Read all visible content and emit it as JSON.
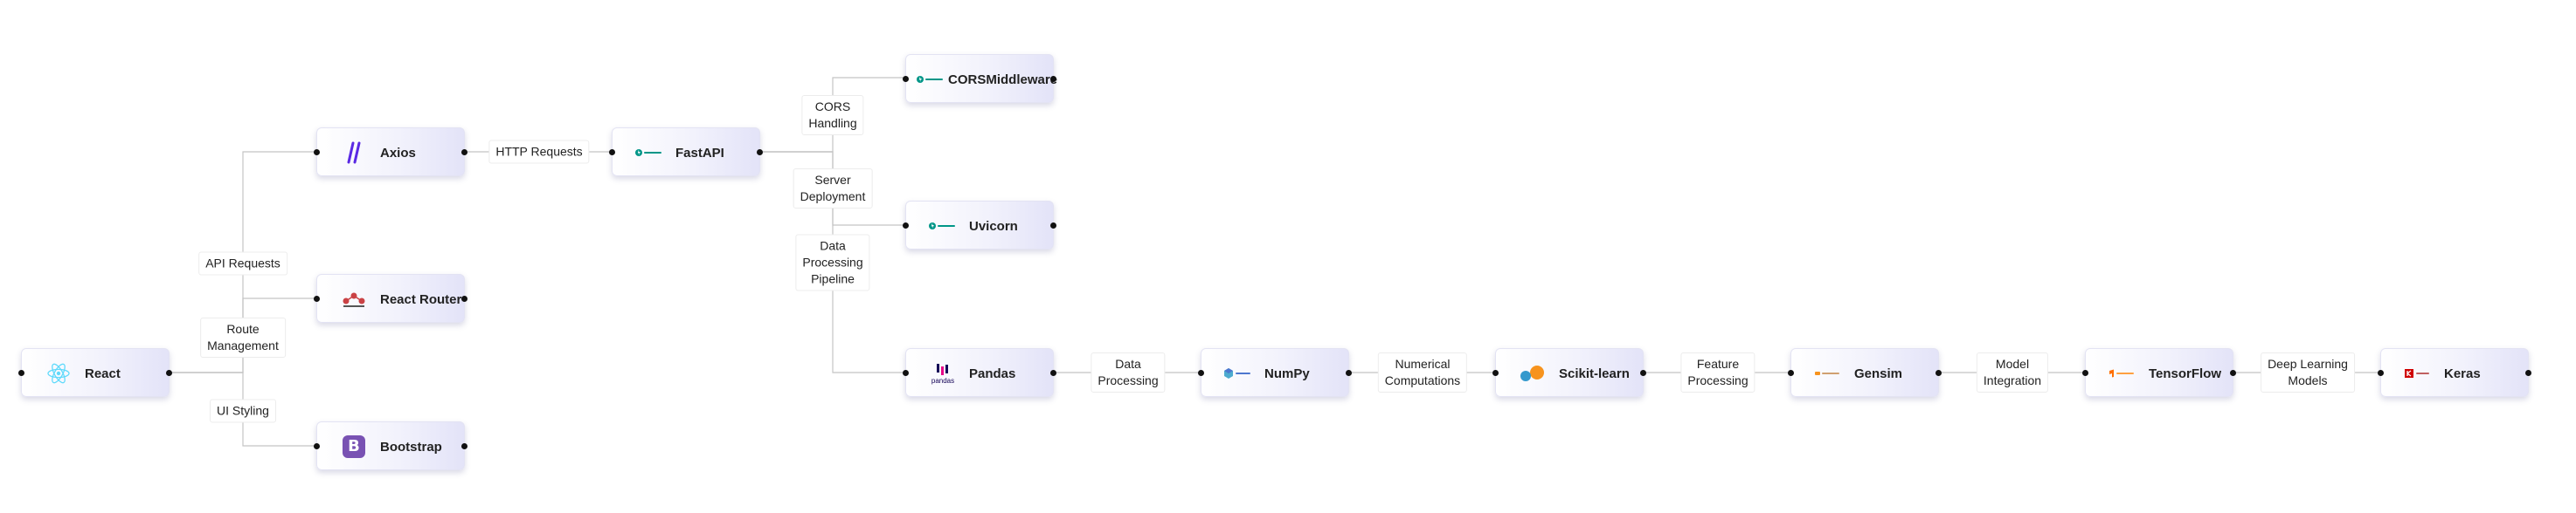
{
  "nodes": {
    "react": "React",
    "axios": "Axios",
    "react_router": "React Router",
    "bootstrap": "Bootstrap",
    "fastapi": "FastAPI",
    "cors": "CORSMiddleware",
    "uvicorn": "Uvicorn",
    "pandas": "Pandas",
    "numpy": "NumPy",
    "sklearn": "Scikit-learn",
    "gensim": "Gensim",
    "tensorflow": "TensorFlow",
    "keras": "Keras"
  },
  "edge_labels": {
    "api_requests": "API Requests",
    "route_management": "Route\nManagement",
    "ui_styling": "UI Styling",
    "http_requests": "HTTP Requests",
    "cors_handling": "CORS\nHandling",
    "server_deployment": "Server\nDeployment",
    "data_pipeline": "Data\nProcessing\nPipeline",
    "data_processing": "Data\nProcessing",
    "numerical": "Numerical\nComputations",
    "feature_processing": "Feature\nProcessing",
    "model_integration": "Model\nIntegration",
    "deep_learning": "Deep Learning\nModels"
  },
  "logo_text": {
    "pandas": "pandas",
    "bootstrap": "B"
  },
  "colors": {
    "edge": "#c4c4c4",
    "react_logo": "#61dafb",
    "axios_logo": "#5a29e4",
    "router_logo": "#ca4245",
    "bootstrap_logo": "#7952b3",
    "fastapi_logo": "#009688",
    "pandas_logo": "#150458",
    "numpy_logo": "#4dabcf",
    "sklearn_orange": "#f7931e",
    "sklearn_blue": "#3499cd",
    "tensorflow_logo": "#ff6f00",
    "keras_logo": "#d00000"
  },
  "icons": {
    "react": "react-atom-icon",
    "axios": "axios-icon",
    "react_router": "react-router-icon",
    "bootstrap": "bootstrap-icon",
    "fastapi": "fastapi-icon",
    "pandas": "pandas-icon",
    "numpy": "numpy-icon",
    "sklearn": "scikit-learn-icon",
    "gensim": "gensim-icon",
    "tensorflow": "tensorflow-icon",
    "keras": "keras-icon"
  }
}
